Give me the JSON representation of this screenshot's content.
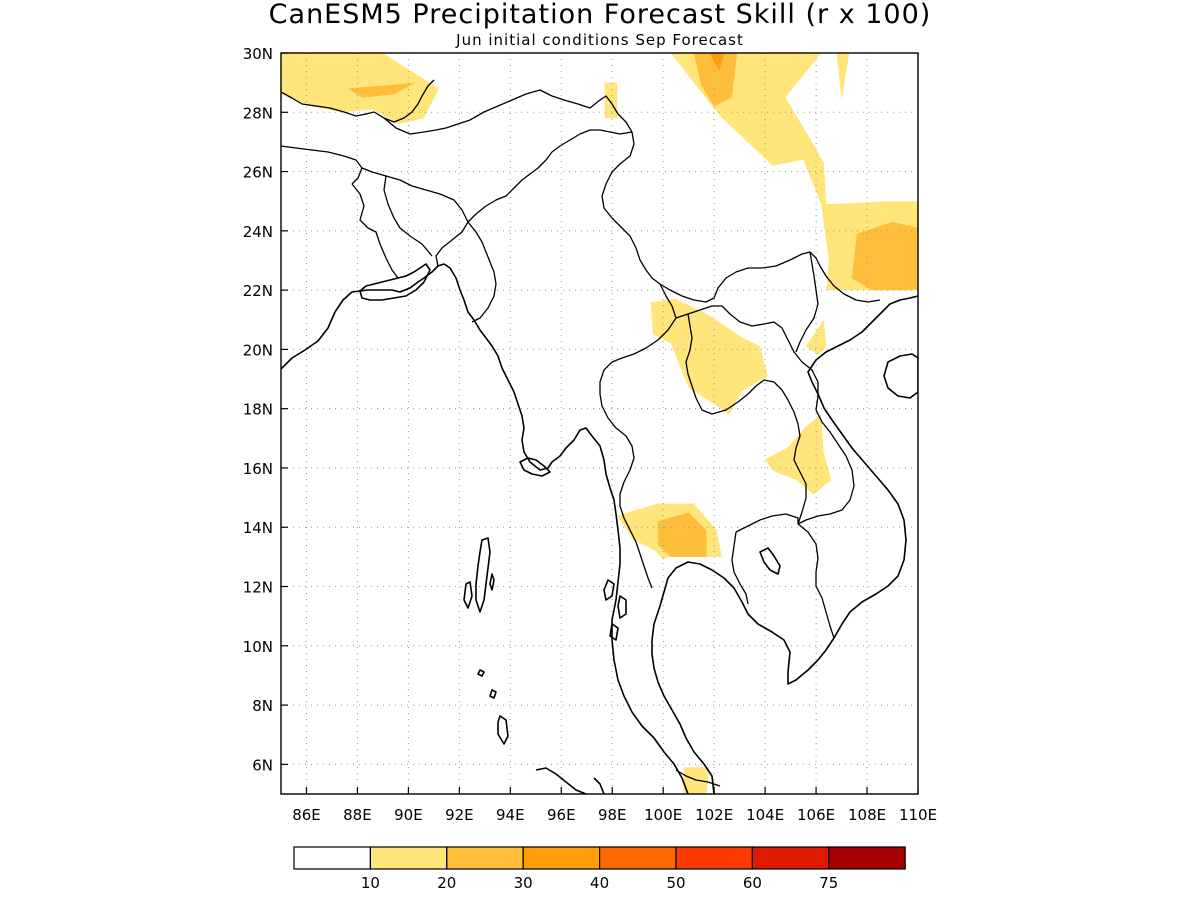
{
  "title": "CanESM5 Precipitation Forecast Skill (r x 100)",
  "subtitle": "Jun initial conditions  Sep Forecast",
  "map": {
    "lon_range": [
      85,
      110
    ],
    "lat_range": [
      5,
      30
    ],
    "lon_ticks": [
      {
        "value": 86,
        "label": "86E"
      },
      {
        "value": 88,
        "label": "88E"
      },
      {
        "value": 90,
        "label": "90E"
      },
      {
        "value": 92,
        "label": "92E"
      },
      {
        "value": 94,
        "label": "94E"
      },
      {
        "value": 96,
        "label": "96E"
      },
      {
        "value": 98,
        "label": "98E"
      },
      {
        "value": 100,
        "label": "100E"
      },
      {
        "value": 102,
        "label": "102E"
      },
      {
        "value": 104,
        "label": "104E"
      },
      {
        "value": 106,
        "label": "106E"
      },
      {
        "value": 108,
        "label": "108E"
      },
      {
        "value": 110,
        "label": "110E"
      }
    ],
    "lat_ticks": [
      {
        "value": 6,
        "label": "6N"
      },
      {
        "value": 8,
        "label": "8N"
      },
      {
        "value": 10,
        "label": "10N"
      },
      {
        "value": 12,
        "label": "12N"
      },
      {
        "value": 14,
        "label": "14N"
      },
      {
        "value": 16,
        "label": "16N"
      },
      {
        "value": 18,
        "label": "18N"
      },
      {
        "value": 20,
        "label": "20N"
      },
      {
        "value": 22,
        "label": "22N"
      },
      {
        "value": 24,
        "label": "24N"
      },
      {
        "value": 26,
        "label": "26N"
      },
      {
        "value": 28,
        "label": "28N"
      },
      {
        "value": 30,
        "label": "30N"
      }
    ],
    "gridlines": "dotted"
  },
  "colorbar": {
    "colors": [
      "#ffffff",
      "#ffe57a",
      "#ffbe3a",
      "#ff9d0a",
      "#ff6a00",
      "#ff3a00",
      "#de1b00",
      "#a50000"
    ],
    "labels": [
      "10",
      "20",
      "30",
      "40",
      "50",
      "60",
      "75"
    ]
  },
  "chart_data": {
    "type": "heatmap",
    "title": "CanESM5 Precipitation Forecast Skill (r x 100)",
    "subtitle": "Jun initial conditions  Sep Forecast",
    "variable": "Precipitation forecast skill (r x 100)",
    "xlim": [
      85,
      110
    ],
    "ylim": [
      5,
      30
    ],
    "levels": [
      10,
      20,
      30,
      40,
      50,
      60,
      75
    ],
    "regions": [
      {
        "level": 10,
        "points": [
          [
            85,
            30
          ],
          [
            89,
            30
          ],
          [
            91.2,
            28.8
          ],
          [
            90.6,
            27.8
          ],
          [
            89.6,
            27.6
          ],
          [
            88.6,
            28.1
          ],
          [
            87.4,
            28.0
          ],
          [
            86.2,
            28.2
          ],
          [
            85,
            28.6
          ]
        ]
      },
      {
        "level": 20,
        "points": [
          [
            87.6,
            28.8
          ],
          [
            89.0,
            28.9
          ],
          [
            90.3,
            29.0
          ],
          [
            89.4,
            28.6
          ],
          [
            88.2,
            28.5
          ]
        ]
      },
      {
        "level": 10,
        "points": [
          [
            97.7,
            29.0
          ],
          [
            98.2,
            29.0
          ],
          [
            98.2,
            27.8
          ],
          [
            97.7,
            27.8
          ]
        ]
      },
      {
        "level": 10,
        "points": [
          [
            100.3,
            30
          ],
          [
            106.2,
            30
          ],
          [
            104.8,
            28.5
          ],
          [
            105.7,
            27.2
          ],
          [
            106.3,
            26.3
          ],
          [
            106.4,
            24.9
          ],
          [
            108.9,
            25.0
          ],
          [
            110,
            25.0
          ],
          [
            110,
            22.0
          ],
          [
            106.4,
            22.0
          ],
          [
            106.5,
            23.0
          ],
          [
            106.2,
            24.9
          ],
          [
            105.5,
            26.4
          ],
          [
            104.3,
            26.2
          ],
          [
            103.3,
            27.0
          ],
          [
            102.2,
            27.9
          ]
        ]
      },
      {
        "level": 10,
        "points": [
          [
            106.8,
            30
          ],
          [
            107.3,
            30
          ],
          [
            107.0,
            28.4
          ]
        ]
      },
      {
        "level": 20,
        "points": [
          [
            101.2,
            30
          ],
          [
            102.9,
            30
          ],
          [
            102.7,
            28.5
          ],
          [
            102.0,
            28.2
          ],
          [
            101.5,
            28.9
          ]
        ]
      },
      {
        "level": 30,
        "points": [
          [
            101.8,
            30
          ],
          [
            102.4,
            30
          ],
          [
            102.2,
            29.4
          ]
        ]
      },
      {
        "level": 20,
        "points": [
          [
            107.6,
            23.9
          ],
          [
            109.0,
            24.3
          ],
          [
            110,
            24.1
          ],
          [
            110,
            22.0
          ],
          [
            108.2,
            22.0
          ],
          [
            107.4,
            22.4
          ]
        ]
      },
      {
        "level": 10,
        "points": [
          [
            99.5,
            21.6
          ],
          [
            100.5,
            21.7
          ],
          [
            101.7,
            21.2
          ],
          [
            103.1,
            20.4
          ],
          [
            103.8,
            20.1
          ],
          [
            104.1,
            19.1
          ],
          [
            103.1,
            18.6
          ],
          [
            102.6,
            17.8
          ],
          [
            102.1,
            18.1
          ],
          [
            101.0,
            18.7
          ],
          [
            100.3,
            20.2
          ],
          [
            99.6,
            20.5
          ]
        ]
      },
      {
        "level": 10,
        "points": [
          [
            106.3,
            21.0
          ],
          [
            106.4,
            20.1
          ],
          [
            106.1,
            19.8
          ],
          [
            105.6,
            20.1
          ]
        ]
      },
      {
        "level": 10,
        "points": [
          [
            104.0,
            16.3
          ],
          [
            104.9,
            16.7
          ],
          [
            105.6,
            17.4
          ],
          [
            106.2,
            17.8
          ],
          [
            106.3,
            16.5
          ],
          [
            106.6,
            15.6
          ],
          [
            105.9,
            15.1
          ],
          [
            105.2,
            15.6
          ],
          [
            104.3,
            15.9
          ]
        ]
      },
      {
        "level": 10,
        "points": [
          [
            98.2,
            14.4
          ],
          [
            99.8,
            14.8
          ],
          [
            101.2,
            14.8
          ],
          [
            102.1,
            13.9
          ],
          [
            102.3,
            13.0
          ],
          [
            100.2,
            13.0
          ],
          [
            100.0,
            12.9
          ],
          [
            99.7,
            13.2
          ],
          [
            98.8,
            13.6
          ]
        ]
      },
      {
        "level": 20,
        "points": [
          [
            99.8,
            14.2
          ],
          [
            101.0,
            14.5
          ],
          [
            101.7,
            13.9
          ],
          [
            101.7,
            13.0
          ],
          [
            100.3,
            13.0
          ],
          [
            99.8,
            13.4
          ]
        ]
      },
      {
        "level": 10,
        "points": [
          [
            100.8,
            5.9
          ],
          [
            101.8,
            5.9
          ],
          [
            101.7,
            5.0
          ],
          [
            100.8,
            5.0
          ]
        ]
      }
    ]
  }
}
